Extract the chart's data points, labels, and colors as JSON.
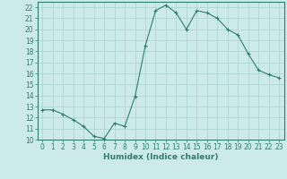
{
  "x": [
    0,
    1,
    2,
    3,
    4,
    5,
    6,
    7,
    8,
    9,
    10,
    11,
    12,
    13,
    14,
    15,
    16,
    17,
    18,
    19,
    20,
    21,
    22,
    23
  ],
  "y": [
    12.7,
    12.7,
    12.3,
    11.8,
    11.2,
    10.3,
    10.1,
    11.5,
    11.2,
    13.9,
    18.5,
    21.7,
    22.2,
    21.5,
    20.0,
    21.7,
    21.5,
    21.0,
    20.0,
    19.5,
    17.8,
    16.3,
    15.9,
    15.6
  ],
  "line_color": "#2e7d6e",
  "marker": "o",
  "marker_size": 2.0,
  "bg_color": "#cdeaea",
  "grid_color": "#b0d4d4",
  "xlabel": "Humidex (Indice chaleur)",
  "ylim": [
    10,
    22.5
  ],
  "xlim": [
    -0.5,
    23.5
  ],
  "yticks": [
    10,
    11,
    12,
    13,
    14,
    15,
    16,
    17,
    18,
    19,
    20,
    21,
    22
  ],
  "xticks": [
    0,
    1,
    2,
    3,
    4,
    5,
    6,
    7,
    8,
    9,
    10,
    11,
    12,
    13,
    14,
    15,
    16,
    17,
    18,
    19,
    20,
    21,
    22,
    23
  ],
  "tick_fontsize": 5.5,
  "label_fontsize": 6.5,
  "spine_color": "#2e7d6e"
}
